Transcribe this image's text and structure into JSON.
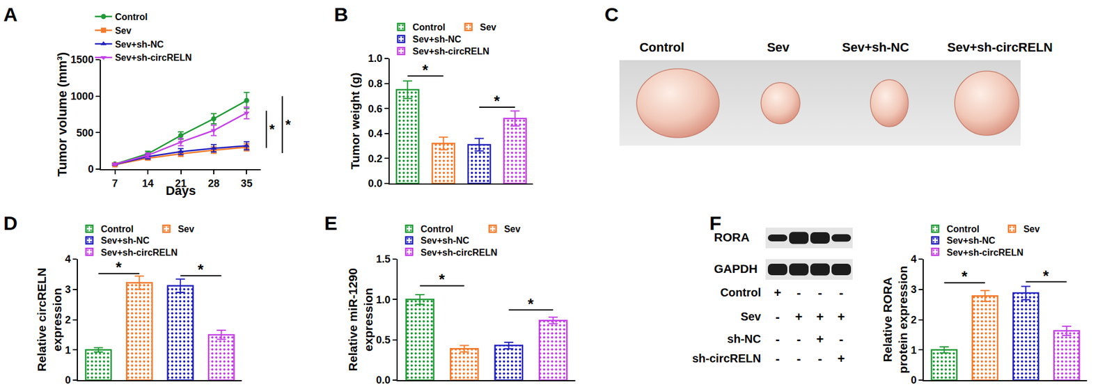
{
  "chart_data": [
    {
      "panel": "A",
      "type": "line",
      "x_label": "Days",
      "y_label": "Tumor volume (mm³)",
      "x": [
        7,
        14,
        21,
        28,
        35
      ],
      "xlim": [
        4,
        38
      ],
      "xticks": [
        7,
        14,
        21,
        28,
        35
      ],
      "ylim": [
        0,
        1500
      ],
      "yticks": [
        0,
        500,
        1000,
        1500
      ],
      "grid": false,
      "legend": "top left",
      "series": [
        {
          "name": "Control",
          "color": "#1f9a35",
          "marker": "circle",
          "values": [
            70,
            210,
            460,
            690,
            940
          ],
          "errors": [
            15,
            35,
            50,
            70,
            110
          ]
        },
        {
          "name": "Sev",
          "color": "#f47a2a",
          "marker": "square",
          "values": [
            60,
            150,
            210,
            260,
            300
          ],
          "errors": [
            10,
            25,
            35,
            45,
            50
          ]
        },
        {
          "name": "Sev+sh-NC",
          "color": "#2020bf",
          "marker": "triangle-up",
          "values": [
            65,
            170,
            240,
            285,
            320
          ],
          "errors": [
            12,
            30,
            40,
            50,
            55
          ]
        },
        {
          "name": "Sev+sh-circRELN",
          "color": "#c43ee8",
          "marker": "triangle-down",
          "values": [
            68,
            190,
            370,
            530,
            770
          ],
          "errors": [
            12,
            30,
            50,
            70,
            80
          ]
        }
      ],
      "annotations": [
        {
          "text": "*",
          "y_from": 290,
          "y_to": 800
        },
        {
          "text": "*",
          "y_from": 220,
          "y_to": 1000
        }
      ]
    },
    {
      "panel": "B",
      "type": "bar",
      "y_label": "Tumor weight (g)",
      "categories": [
        "Control",
        "Sev",
        "Sev+sh-NC",
        "Sev+sh-circRELN"
      ],
      "values": [
        0.75,
        0.32,
        0.31,
        0.52
      ],
      "errors": [
        0.07,
        0.05,
        0.05,
        0.06
      ],
      "colors": [
        "#1f9a35",
        "#f47a2a",
        "#2020bf",
        "#c43ee8"
      ],
      "ylim": [
        0,
        1
      ],
      "yticks": [
        {
          "value": 0,
          "label": "0.0"
        },
        0.2,
        0.4,
        0.6,
        0.8,
        {
          "value": 1,
          "label": "1.0"
        }
      ],
      "grid": false,
      "legend": "top",
      "tick_labels": "y",
      "annotations": [
        {
          "text": "*",
          "from": "Control",
          "to": "Sev",
          "y": 0.86
        },
        {
          "text": "*",
          "from": "Sev+sh-NC",
          "to": "Sev+sh-circRELN",
          "y": 0.61
        }
      ]
    },
    {
      "panel": "D",
      "type": "bar",
      "y_label": "Relative circRELN\nexpression",
      "categories": [
        "Control",
        "Sev",
        "Sev+sh-NC",
        "Sev+sh-circRELN"
      ],
      "values": [
        1.0,
        3.22,
        3.12,
        1.5
      ],
      "errors": [
        0.07,
        0.22,
        0.22,
        0.15
      ],
      "colors": [
        "#1f9a35",
        "#f47a2a",
        "#2020bf",
        "#c43ee8"
      ],
      "ylim": [
        0,
        4
      ],
      "yticks": [
        0,
        1,
        2,
        3,
        4
      ],
      "grid": false,
      "legend": "top",
      "tick_labels": "y",
      "annotations": [
        {
          "text": "*",
          "from": "Control",
          "to": "Sev",
          "y": 3.52
        },
        {
          "text": "*",
          "from": "Sev+sh-NC",
          "to": "Sev+sh-circRELN",
          "y": 3.45
        }
      ]
    },
    {
      "panel": "E",
      "type": "bar",
      "y_label": "Relative miR-1290\nexpression",
      "categories": [
        "Control",
        "Sev",
        "Sev+sh-NC",
        "Sev+sh-circRELN"
      ],
      "values": [
        1.0,
        0.39,
        0.43,
        0.74
      ],
      "errors": [
        0.06,
        0.04,
        0.04,
        0.04
      ],
      "colors": [
        "#1f9a35",
        "#f47a2a",
        "#2020bf",
        "#c43ee8"
      ],
      "ylim": [
        0,
        1.5
      ],
      "yticks": [
        {
          "value": 0,
          "label": "0.0"
        },
        0.5,
        {
          "value": 1,
          "label": "1.0"
        },
        1.5
      ],
      "grid": false,
      "legend": "top",
      "tick_labels": "y",
      "annotations": [
        {
          "text": "*",
          "from": "Control",
          "to": "Sev",
          "y": 1.17
        },
        {
          "text": "*",
          "from": "Sev+sh-NC",
          "to": "Sev+sh-circRELN",
          "y": 0.87
        }
      ]
    },
    {
      "panel": "F",
      "type": "bar",
      "y_label": "Relative RORA\nprotein expression",
      "categories": [
        "Control",
        "Sev",
        "Sev+sh-NC",
        "Sev+sh-circRELN"
      ],
      "values": [
        1.0,
        2.78,
        2.88,
        1.63
      ],
      "errors": [
        0.1,
        0.18,
        0.22,
        0.15
      ],
      "colors": [
        "#1f9a35",
        "#f47a2a",
        "#2020bf",
        "#c43ee8"
      ],
      "ylim": [
        0,
        4
      ],
      "yticks": [
        0,
        1,
        2,
        3,
        4
      ],
      "grid": false,
      "legend": "top",
      "tick_labels": "y",
      "annotations": [
        {
          "text": "*",
          "from": "Control",
          "to": "Sev",
          "y": 3.22
        },
        {
          "text": "*",
          "from": "Sev+sh-NC",
          "to": "Sev+sh-circRELN",
          "y": 3.25
        }
      ]
    }
  ],
  "photo": {
    "panel": "C",
    "labels": [
      "Control",
      "Sev",
      "Sev+sh-NC",
      "Sev+sh-circRELN"
    ]
  },
  "blot": {
    "bands": [
      "RORA",
      "GAPDH"
    ],
    "treatments": [
      {
        "name": "Control",
        "marks": [
          "+",
          "-",
          "-",
          "-"
        ]
      },
      {
        "name": "Sev",
        "marks": [
          "-",
          "+",
          "+",
          "+"
        ]
      },
      {
        "name": "sh-NC",
        "marks": [
          "-",
          "-",
          "+",
          "-"
        ]
      },
      {
        "name": "sh-circRELN",
        "marks": [
          "-",
          "-",
          "-",
          "+"
        ]
      }
    ]
  }
}
